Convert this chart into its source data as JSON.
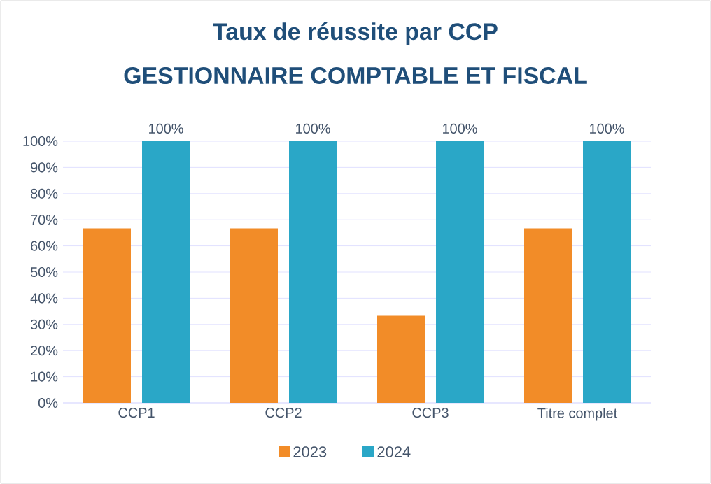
{
  "chart_data": {
    "type": "bar",
    "title": "Taux de réussite par CCP",
    "subtitle": "GESTIONNAIRE COMPTABLE ET FISCAL",
    "categories": [
      "CCP1",
      "CCP2",
      "CCP3",
      "Titre complet"
    ],
    "series": [
      {
        "name": "2023",
        "color": "#f28c28",
        "values": [
          66.7,
          66.7,
          33.3,
          66.7
        ]
      },
      {
        "name": "2024",
        "color": "#2aa7c7",
        "values": [
          100,
          100,
          100,
          100
        ],
        "value_labels": [
          "100%",
          "100%",
          "100%",
          "100%"
        ]
      }
    ],
    "ylim": [
      0,
      100
    ],
    "yticks": [
      {
        "value": 0,
        "label": "0%"
      },
      {
        "value": 10,
        "label": "10%"
      },
      {
        "value": 20,
        "label": "20%"
      },
      {
        "value": 30,
        "label": "30%"
      },
      {
        "value": 40,
        "label": "40%"
      },
      {
        "value": 50,
        "label": "50%"
      },
      {
        "value": 60,
        "label": "60%"
      },
      {
        "value": 70,
        "label": "70%"
      },
      {
        "value": 80,
        "label": "80%"
      },
      {
        "value": 90,
        "label": "90%"
      },
      {
        "value": 100,
        "label": "100%"
      }
    ],
    "grid": "y",
    "legend": "bottom"
  }
}
